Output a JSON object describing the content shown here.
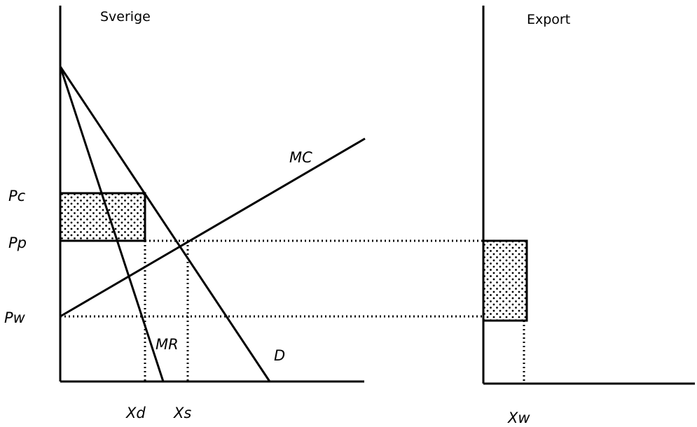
{
  "panels": [
    {
      "title": "Sverige"
    },
    {
      "title": "Export"
    }
  ],
  "price_labels": [
    "Pc",
    "Pp",
    "Pw"
  ],
  "quantity_labels": [
    "Xd",
    "Xs",
    "Xw"
  ],
  "curve_labels": [
    "MC",
    "MR",
    "D"
  ]
}
